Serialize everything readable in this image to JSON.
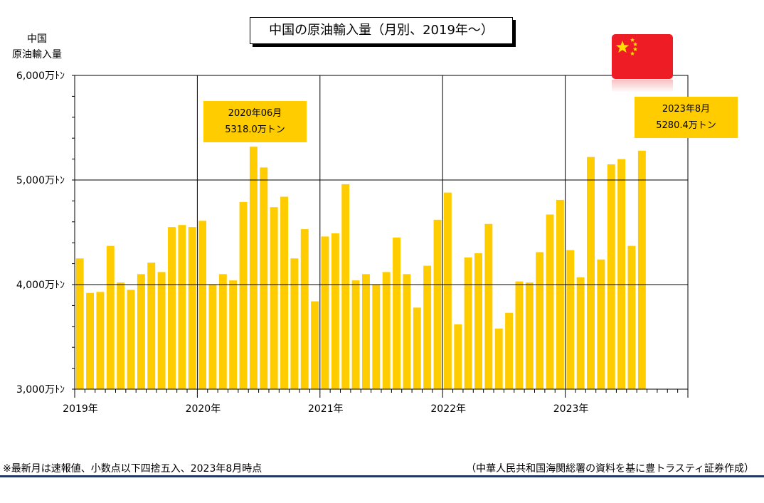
{
  "title": "中国の原油輸入量（月別、2019年～）",
  "ylabel": [
    "中国",
    "原油輸入量"
  ],
  "flag_icon": "china-flag-icon",
  "colors": {
    "bar": "#ffcc00",
    "callout": "#ffcc00",
    "grid": "#000000",
    "rule": "#1f3864",
    "flag": "#ee1c25",
    "star": "#ffde00"
  },
  "callouts": [
    {
      "line1": "2020年06月",
      "line2": "5318.0万トン"
    },
    {
      "line1": "2023年8月",
      "line2": "5280.4万トン"
    }
  ],
  "footnote_left": "※最新月は速報値、小数点以下四捨五入、2023年8月時点",
  "footnote_right": "（中華人民共和国海関総署の資料を基に豊トラスティ証券作成）",
  "chart_data": {
    "type": "bar",
    "title": "中国の原油輸入量（月別、2019年～）",
    "ylabel": "中国 原油輸入量",
    "unit": "万トン",
    "ylim": [
      3000,
      6000
    ],
    "yticks": [
      3000,
      4000,
      5000,
      6000
    ],
    "ytick_labels": [
      "3,000万ﾄﾝ",
      "4,000万ﾄﾝ",
      "5,000万ﾄﾝ",
      "6,000万ﾄﾝ"
    ],
    "xtick_labels": [
      "2019年",
      "2020年",
      "2021年",
      "2022年",
      "2023年"
    ],
    "months_per_year": 12,
    "total_slots": 60,
    "grid": true,
    "categories": [
      "2019-01",
      "2019-02",
      "2019-03",
      "2019-04",
      "2019-05",
      "2019-06",
      "2019-07",
      "2019-08",
      "2019-09",
      "2019-10",
      "2019-11",
      "2019-12",
      "2020-01",
      "2020-02",
      "2020-03",
      "2020-04",
      "2020-05",
      "2020-06",
      "2020-07",
      "2020-08",
      "2020-09",
      "2020-10",
      "2020-11",
      "2020-12",
      "2021-01",
      "2021-02",
      "2021-03",
      "2021-04",
      "2021-05",
      "2021-06",
      "2021-07",
      "2021-08",
      "2021-09",
      "2021-10",
      "2021-11",
      "2021-12",
      "2022-01",
      "2022-02",
      "2022-03",
      "2022-04",
      "2022-05",
      "2022-06",
      "2022-07",
      "2022-08",
      "2022-09",
      "2022-10",
      "2022-11",
      "2022-12",
      "2023-01",
      "2023-02",
      "2023-03",
      "2023-04",
      "2023-05",
      "2023-06",
      "2023-07",
      "2023-08"
    ],
    "values": [
      4250,
      3920,
      3930,
      4370,
      4020,
      3950,
      4100,
      4210,
      4120,
      4550,
      4570,
      4550,
      4610,
      4000,
      4100,
      4040,
      4790,
      5318,
      5120,
      4740,
      4840,
      4250,
      4530,
      3840,
      4460,
      4490,
      4960,
      4040,
      4100,
      4000,
      4120,
      4450,
      4100,
      3780,
      4180,
      4620,
      4880,
      3620,
      4260,
      4300,
      4580,
      3580,
      3730,
      4030,
      4020,
      4310,
      4670,
      4810,
      4330,
      4070,
      5220,
      4240,
      5150,
      5200,
      4370,
      5280.4
    ]
  }
}
